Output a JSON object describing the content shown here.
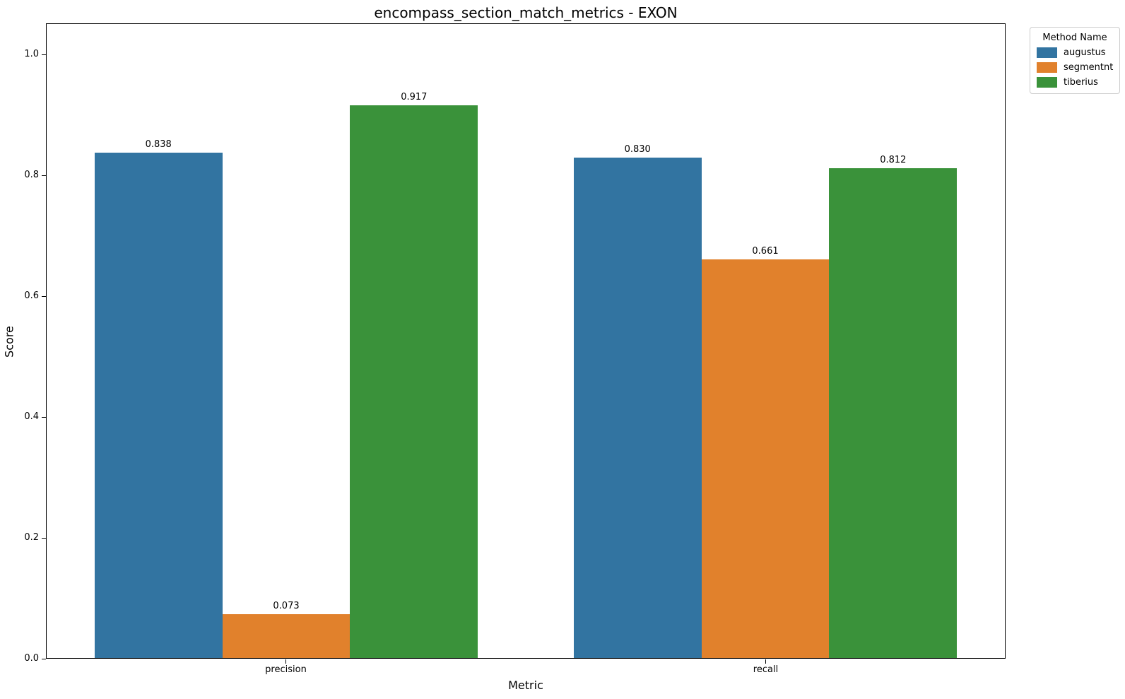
{
  "chart_data": {
    "type": "bar",
    "title": "encompass_section_match_metrics - EXON",
    "xlabel": "Metric",
    "ylabel": "Score",
    "categories": [
      "precision",
      "recall"
    ],
    "series": [
      {
        "name": "augustus",
        "color": "#3274a1",
        "values": [
          0.838,
          0.83
        ]
      },
      {
        "name": "segmentnt",
        "color": "#e1812c",
        "values": [
          0.073,
          0.661
        ]
      },
      {
        "name": "tiberius",
        "color": "#3a923a",
        "values": [
          0.917,
          0.812
        ]
      }
    ],
    "value_label_format": "3dp",
    "yticks": [
      "0.0",
      "0.2",
      "0.4",
      "0.6",
      "0.8",
      "1.0"
    ],
    "ylim": [
      0,
      1.0515
    ],
    "group_width": 0.8,
    "grid": false,
    "legend": {
      "title": "Method Name",
      "position": "upper-right-outside"
    }
  }
}
